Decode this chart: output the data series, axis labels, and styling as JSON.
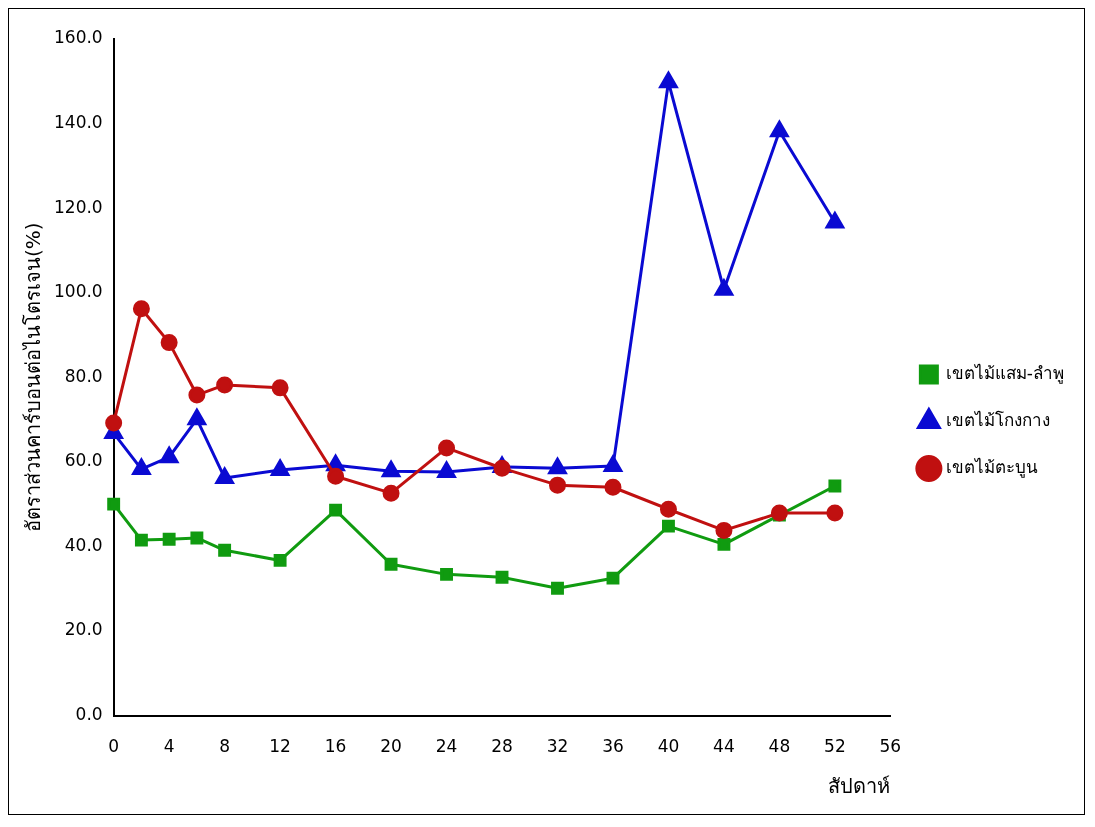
{
  "chart_data": {
    "type": "line",
    "xlabel": "สัปดาห์",
    "ylabel": "อัตราส่วนคาร์บอนต่อไนโตรเจน(%)",
    "x": [
      0,
      2,
      4,
      6,
      8,
      12,
      16,
      20,
      24,
      28,
      32,
      36,
      40,
      44,
      48,
      52
    ],
    "series": [
      {
        "name": "เขตไม้แสม-ลำพู",
        "color": "#109b10",
        "marker": "square",
        "values": [
          50.0,
          41.5,
          41.7,
          42.0,
          39.1,
          36.7,
          48.6,
          35.8,
          33.4,
          32.7,
          30.1,
          32.5,
          44.8,
          40.5,
          47.4,
          54.3
        ]
      },
      {
        "name": "เขตไม้โกงกาง",
        "color": "#0a0ad2",
        "marker": "triangle",
        "values": [
          66.8,
          58.3,
          61.1,
          70.1,
          56.2,
          58.1,
          59.2,
          57.8,
          57.6,
          58.8,
          58.5,
          59.0,
          149.8,
          100.7,
          138.2,
          116.6
        ]
      },
      {
        "name": "เขตไม้ตะบูน",
        "color": "#c01010",
        "marker": "circle",
        "values": [
          69.2,
          96.2,
          88.2,
          75.8,
          78.2,
          77.5,
          56.6,
          52.6,
          63.3,
          58.5,
          54.5,
          54.0,
          48.8,
          43.8,
          47.9,
          47.9
        ]
      }
    ],
    "xlim": [
      0,
      56
    ],
    "xticks": [
      0,
      4,
      8,
      12,
      16,
      20,
      24,
      28,
      32,
      36,
      40,
      44,
      48,
      52,
      56
    ],
    "ylim": [
      0,
      160
    ],
    "yticks": [
      {
        "value": 0,
        "label": "0.0"
      },
      {
        "value": 20,
        "label": "20.0"
      },
      {
        "value": 40,
        "label": "40.0"
      },
      {
        "value": 60,
        "label": "60.0"
      },
      {
        "value": 80,
        "label": "80.0"
      },
      {
        "value": 100,
        "label": "100.0"
      },
      {
        "value": 120,
        "label": "120.0"
      },
      {
        "value": 140,
        "label": "140.0"
      },
      {
        "value": 160,
        "label": "160.0"
      }
    ],
    "grid": false,
    "legend": "right",
    "line_style": "solid"
  }
}
